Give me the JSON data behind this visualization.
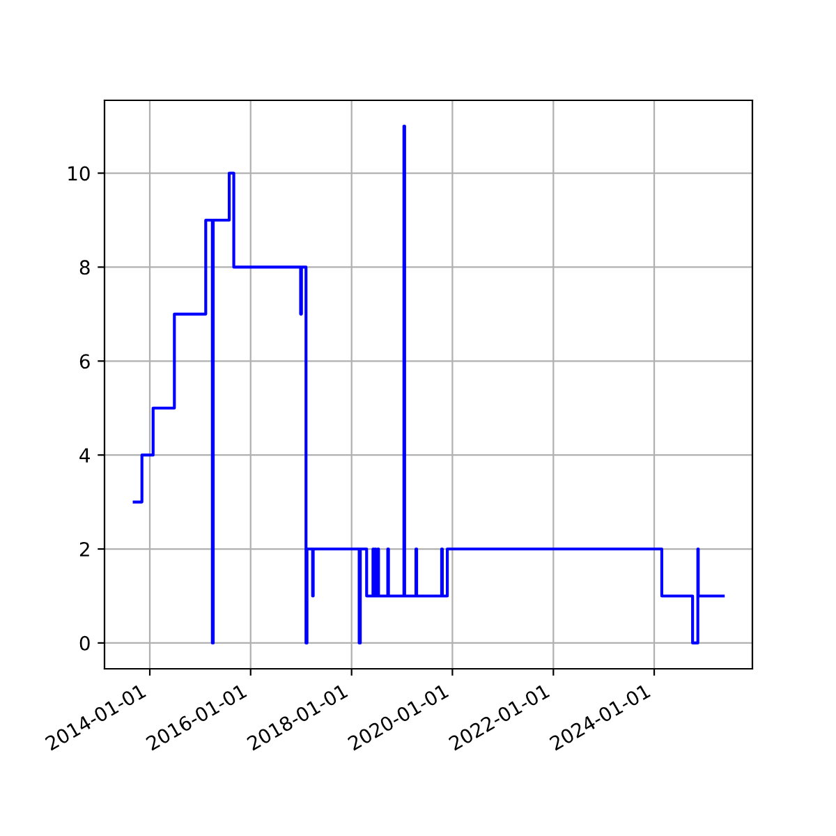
{
  "chart_data": {
    "type": "step",
    "grid": true,
    "marker": "none",
    "line_style": "solid",
    "legend": false,
    "xlim": [
      "2013-02-07",
      "2025-12-12"
    ],
    "xticks": [
      {
        "value": "2014-01-01",
        "label": "2014-01-01"
      },
      {
        "value": "2016-01-01",
        "label": "2016-01-01"
      },
      {
        "value": "2018-01-01",
        "label": "2018-01-01"
      },
      {
        "value": "2020-01-01",
        "label": "2020-01-01"
      },
      {
        "value": "2022-01-01",
        "label": "2022-01-01"
      },
      {
        "value": "2024-01-01",
        "label": "2024-01-01"
      }
    ],
    "ylim": [
      -0.55,
      11.55
    ],
    "yticks": [
      0,
      2,
      4,
      6,
      8,
      10
    ],
    "series": [
      {
        "color": "#0000ff",
        "x": [
          "2013-09-10",
          "2013-11-05",
          "2014-01-25",
          "2014-06-28",
          "2015-02-10",
          "2015-03-30",
          "2015-04-05",
          "2015-07-30",
          "2015-09-01",
          "2016-12-28",
          "2017-01-03",
          "2017-02-05",
          "2017-02-12",
          "2017-03-25",
          "2017-03-29",
          "2018-02-25",
          "2018-03-05",
          "2018-04-20",
          "2018-06-05",
          "2018-06-10",
          "2018-06-20",
          "2018-06-25",
          "2018-07-10",
          "2018-07-15",
          "2018-09-20",
          "2018-09-25",
          "2019-01-15",
          "2019-01-20",
          "2019-04-12",
          "2019-04-17",
          "2019-10-15",
          "2019-10-20",
          "2019-11-25",
          "2024-02-25",
          "2024-10-05",
          "2024-11-12",
          "2024-11-15",
          "2025-05-15"
        ],
        "values": [
          3,
          4,
          5,
          7,
          9,
          0,
          9,
          10,
          8,
          7,
          8,
          0,
          2,
          1,
          2,
          0,
          2,
          1,
          2,
          1,
          2,
          1,
          2,
          1,
          2,
          1,
          11,
          1,
          2,
          1,
          2,
          1,
          2,
          1,
          0,
          2,
          1,
          1
        ]
      }
    ]
  }
}
